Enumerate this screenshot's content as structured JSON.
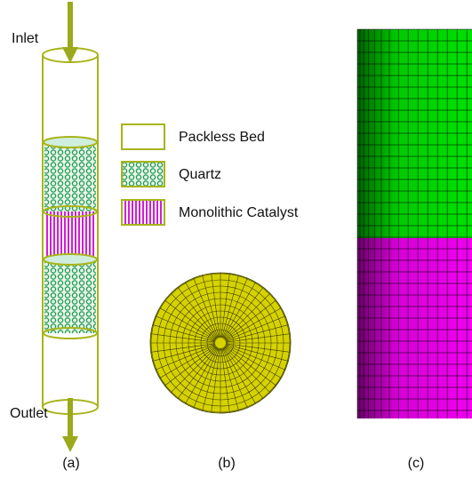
{
  "flow": {
    "inlet": "Inlet",
    "outlet": "Outlet"
  },
  "legend": [
    "Packless Bed",
    "Quartz",
    "Monolithic Catalyst"
  ],
  "panels": [
    "(a)",
    "(b)",
    "(c)"
  ]
}
